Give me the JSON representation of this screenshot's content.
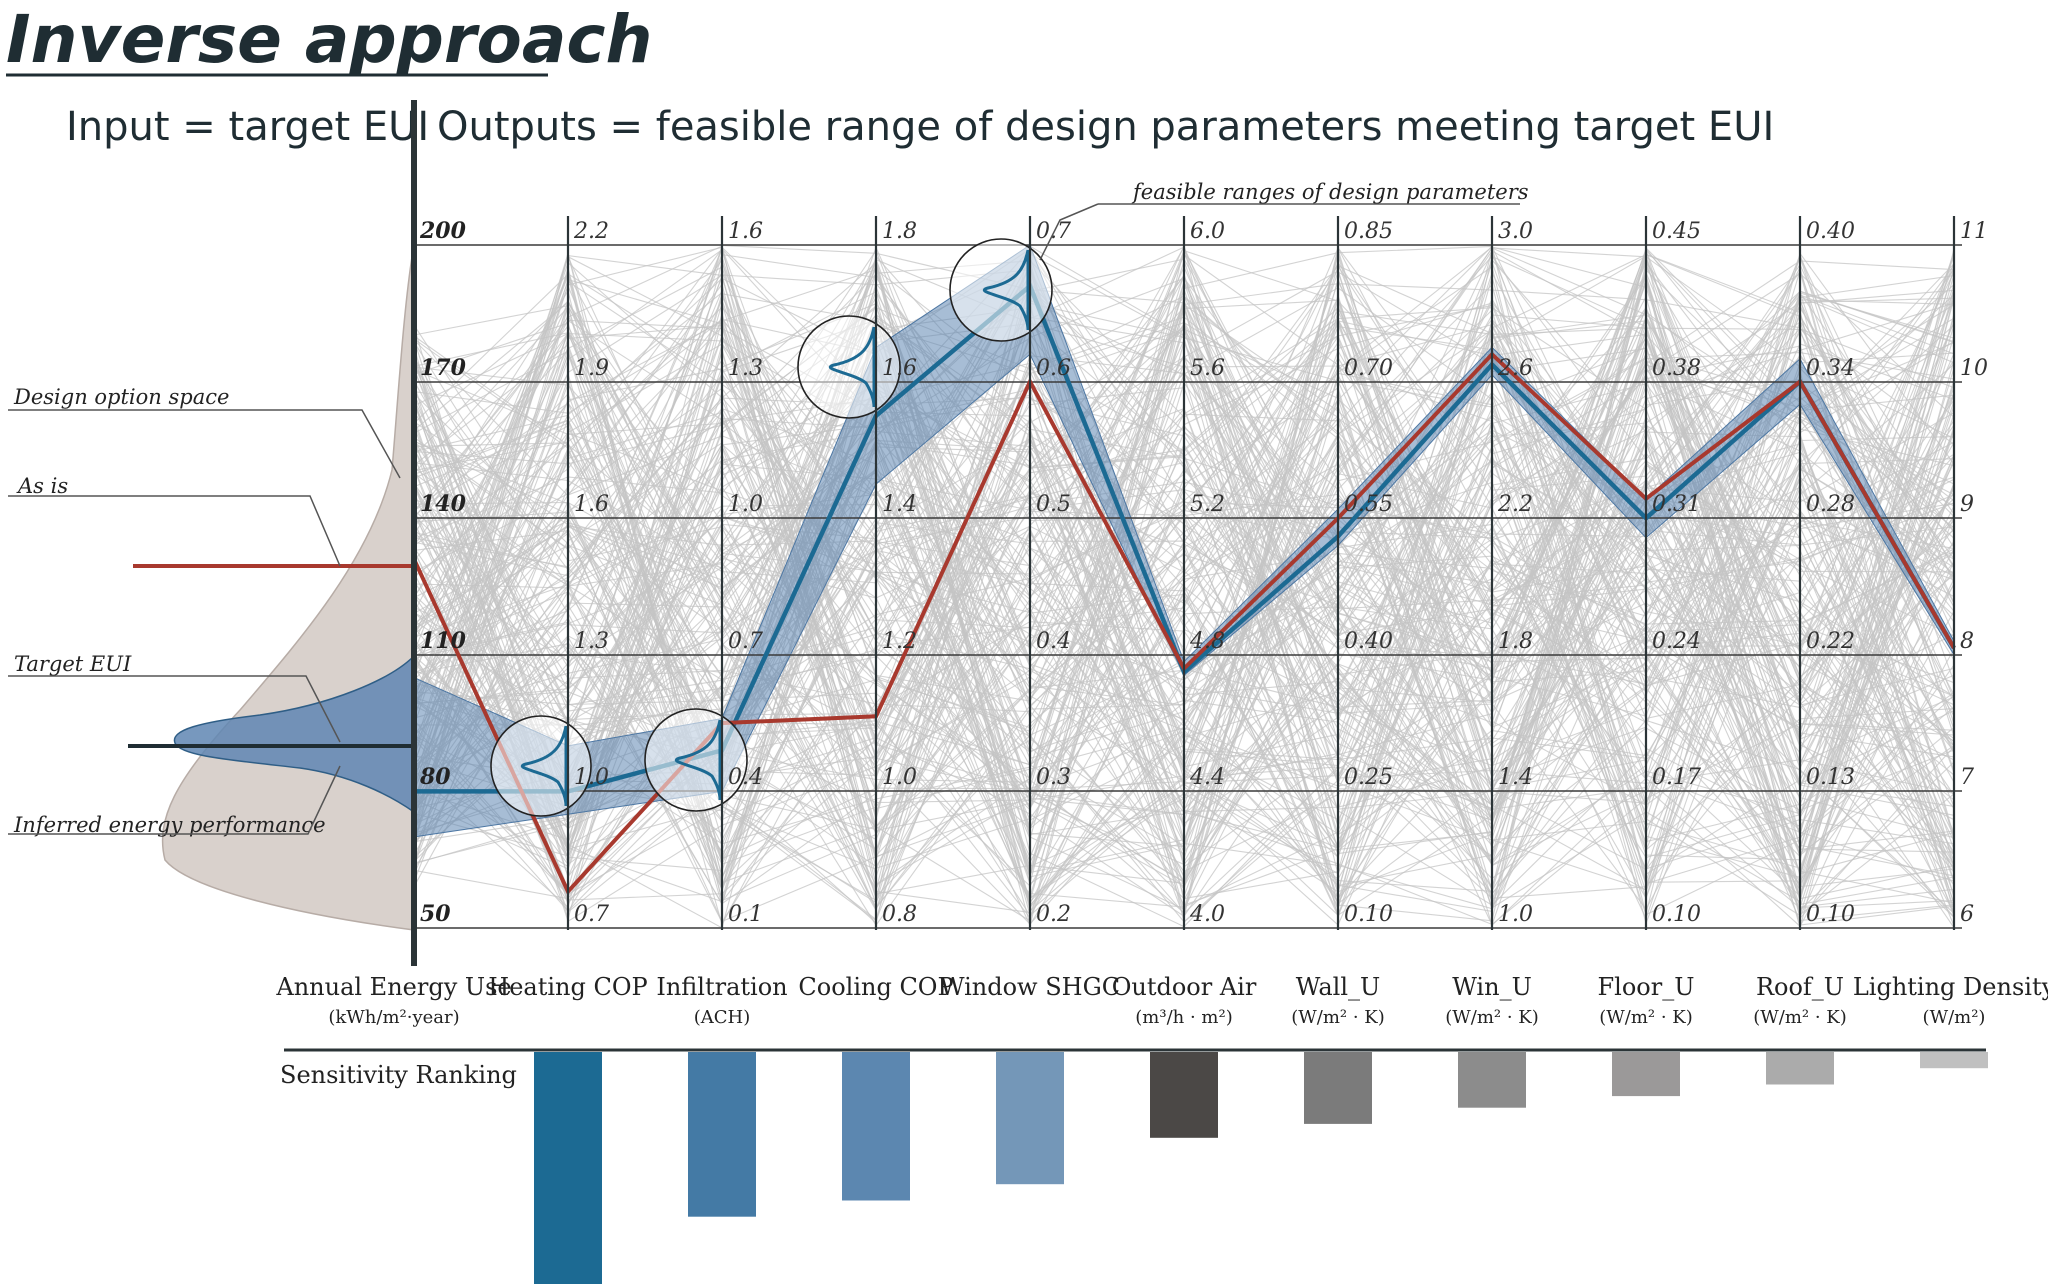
{
  "title": "Inverse approach",
  "input_heading": "Input = target EUI",
  "output_heading": "Outputs = feasible range of design parameters meeting target EUI",
  "annotations": {
    "feasible_ranges": "feasible ranges of design parameters",
    "design_option_space": "Design option space",
    "as_is": "As is",
    "target_eui": "Target EUI",
    "inferred": "Inferred energy performance"
  },
  "sensitivity_label": "Sensitivity Ranking",
  "colors": {
    "as_is_line": "#a8392e",
    "target_line": "#1c6a93",
    "feasible_band": "#5f86b3",
    "background_lines": "#c4c4c4",
    "axis": "#2b3437",
    "distribution_fill": "#d9d1cc"
  },
  "chart_data": {
    "type": "parallel-coordinates",
    "axes": [
      {
        "label": "Annual Energy Use",
        "unit": "(kWh/m²·year)",
        "ticks": [
          "200",
          "170",
          "140",
          "110",
          "80",
          "50"
        ],
        "min": 50,
        "max": 200
      },
      {
        "label": "Heating COP",
        "unit": "",
        "ticks": [
          "2.2",
          "1.9",
          "1.6",
          "1.3",
          "1.0",
          "0.7"
        ],
        "min": 0.7,
        "max": 2.2
      },
      {
        "label": "Infiltration",
        "unit": "(ACH)",
        "ticks": [
          "1.6",
          "1.3",
          "1.0",
          "0.7",
          "0.4",
          "0.1"
        ],
        "min": 0.1,
        "max": 1.6
      },
      {
        "label": "Cooling COP",
        "unit": "",
        "ticks": [
          "1.8",
          "1.6",
          "1.4",
          "1.2",
          "1.0",
          "0.8"
        ],
        "min": 0.8,
        "max": 1.8
      },
      {
        "label": "Window SHGC",
        "unit": "",
        "ticks": [
          "0.7",
          "0.6",
          "0.5",
          "0.4",
          "0.3",
          "0.2"
        ],
        "min": 0.2,
        "max": 0.7
      },
      {
        "label": "Outdoor Air",
        "unit": "(m³/h · m²)",
        "ticks": [
          "6.0",
          "5.6",
          "5.2",
          "4.8",
          "4.4",
          "4.0"
        ],
        "min": 4.0,
        "max": 6.0
      },
      {
        "label": "Wall_U",
        "unit": "(W/m² · K)",
        "ticks": [
          "0.85",
          "0.70",
          "0.55",
          "0.40",
          "0.25",
          "0.10"
        ],
        "min": 0.1,
        "max": 0.85
      },
      {
        "label": "Win_U",
        "unit": "(W/m² · K)",
        "ticks": [
          "3.0",
          "2.6",
          "2.2",
          "1.8",
          "1.4",
          "1.0"
        ],
        "min": 1.0,
        "max": 3.0
      },
      {
        "label": "Floor_U",
        "unit": "(W/m² · K)",
        "ticks": [
          "0.45",
          "0.38",
          "0.31",
          "0.24",
          "0.17",
          "0.10"
        ],
        "min": 0.1,
        "max": 0.45
      },
      {
        "label": "Roof_U",
        "unit": "(W/m² · K)",
        "ticks": [
          "0.40",
          "0.34",
          "0.28",
          "0.22",
          "0.13",
          "0.10"
        ],
        "min": 0.1,
        "max": 0.4
      },
      {
        "label": "Lighting Density",
        "unit": "(W/m²)",
        "ticks": [
          "11",
          "10",
          "9",
          "8",
          "7",
          "6"
        ],
        "min": 6,
        "max": 11
      }
    ],
    "as_is_line": [
      131,
      0.78,
      0.55,
      1.11,
      0.6,
      4.76,
      0.55,
      2.68,
      0.32,
      0.34,
      8.05
    ],
    "target_line": [
      80,
      1.0,
      0.49,
      1.55,
      0.67,
      4.75,
      0.53,
      2.65,
      0.31,
      0.34,
      8.05
    ],
    "feasible_band": {
      "low": [
        70,
        0.95,
        0.4,
        1.45,
        0.62,
        4.74,
        0.52,
        2.62,
        0.3,
        0.33,
        8.0
      ],
      "high": [
        105,
        1.1,
        0.56,
        1.65,
        0.7,
        4.78,
        0.56,
        2.7,
        0.32,
        0.35,
        8.1
      ]
    },
    "sensitivity_ranking": [
      {
        "parameter": "Heating COP",
        "value": 1.0
      },
      {
        "parameter": "Infiltration",
        "value": 0.71
      },
      {
        "parameter": "Cooling COP",
        "value": 0.64
      },
      {
        "parameter": "Window SHGC",
        "value": 0.57
      },
      {
        "parameter": "Outdoor Air",
        "value": 0.37
      },
      {
        "parameter": "Wall_U",
        "value": 0.31
      },
      {
        "parameter": "Win_U",
        "value": 0.24
      },
      {
        "parameter": "Floor_U",
        "value": 0.19
      },
      {
        "parameter": "Roof_U",
        "value": 0.14
      },
      {
        "parameter": "Lighting Density",
        "value": 0.07
      }
    ],
    "sensitivity_colors": [
      "#1c6a93",
      "#447aa5",
      "#5c87b0",
      "#7497b8",
      "#4b4846",
      "#7b7b7b",
      "#8c8c8c",
      "#9b9999",
      "#ababab",
      "#c0c0c0"
    ]
  }
}
